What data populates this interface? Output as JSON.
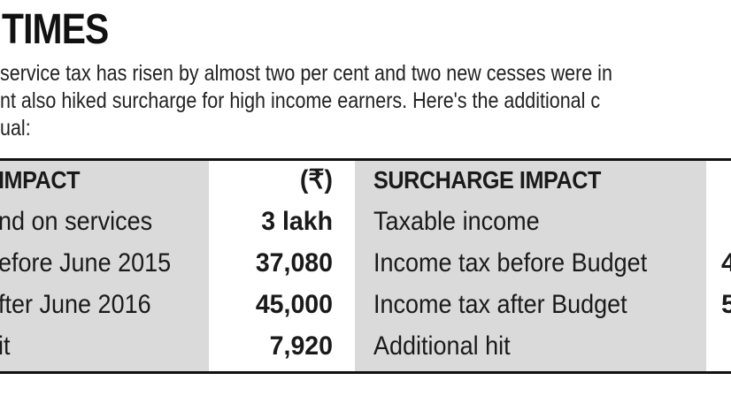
{
  "header": {
    "title": "TIMES"
  },
  "intro": {
    "lines": [
      "service tax has risen by almost two per cent and two new cesses were in",
      "nt also hiked surcharge for high income earners. Here's the additional c",
      "ual:"
    ]
  },
  "table": {
    "left": {
      "header": "IMPACT",
      "unit": "(₹)",
      "rows": [
        {
          "label": "nd on services",
          "value": "3 lakh"
        },
        {
          "label": "efore June 2015",
          "value": "37,080"
        },
        {
          "label": "fter June 2016",
          "value": "45,000"
        },
        {
          "label": "it",
          "value": "7,920"
        }
      ]
    },
    "right": {
      "header": "SURCHARGE IMPACT",
      "rows": [
        {
          "label": "Taxable income",
          "value": ""
        },
        {
          "label": "Income tax before Budget",
          "value": "4"
        },
        {
          "label": "Income tax after Budget",
          "value": "5"
        },
        {
          "label": "Additional hit",
          "value": ""
        }
      ]
    }
  },
  "colors": {
    "gray_column": "#dadada",
    "rule": "#111111",
    "text": "#1a1a1a"
  }
}
